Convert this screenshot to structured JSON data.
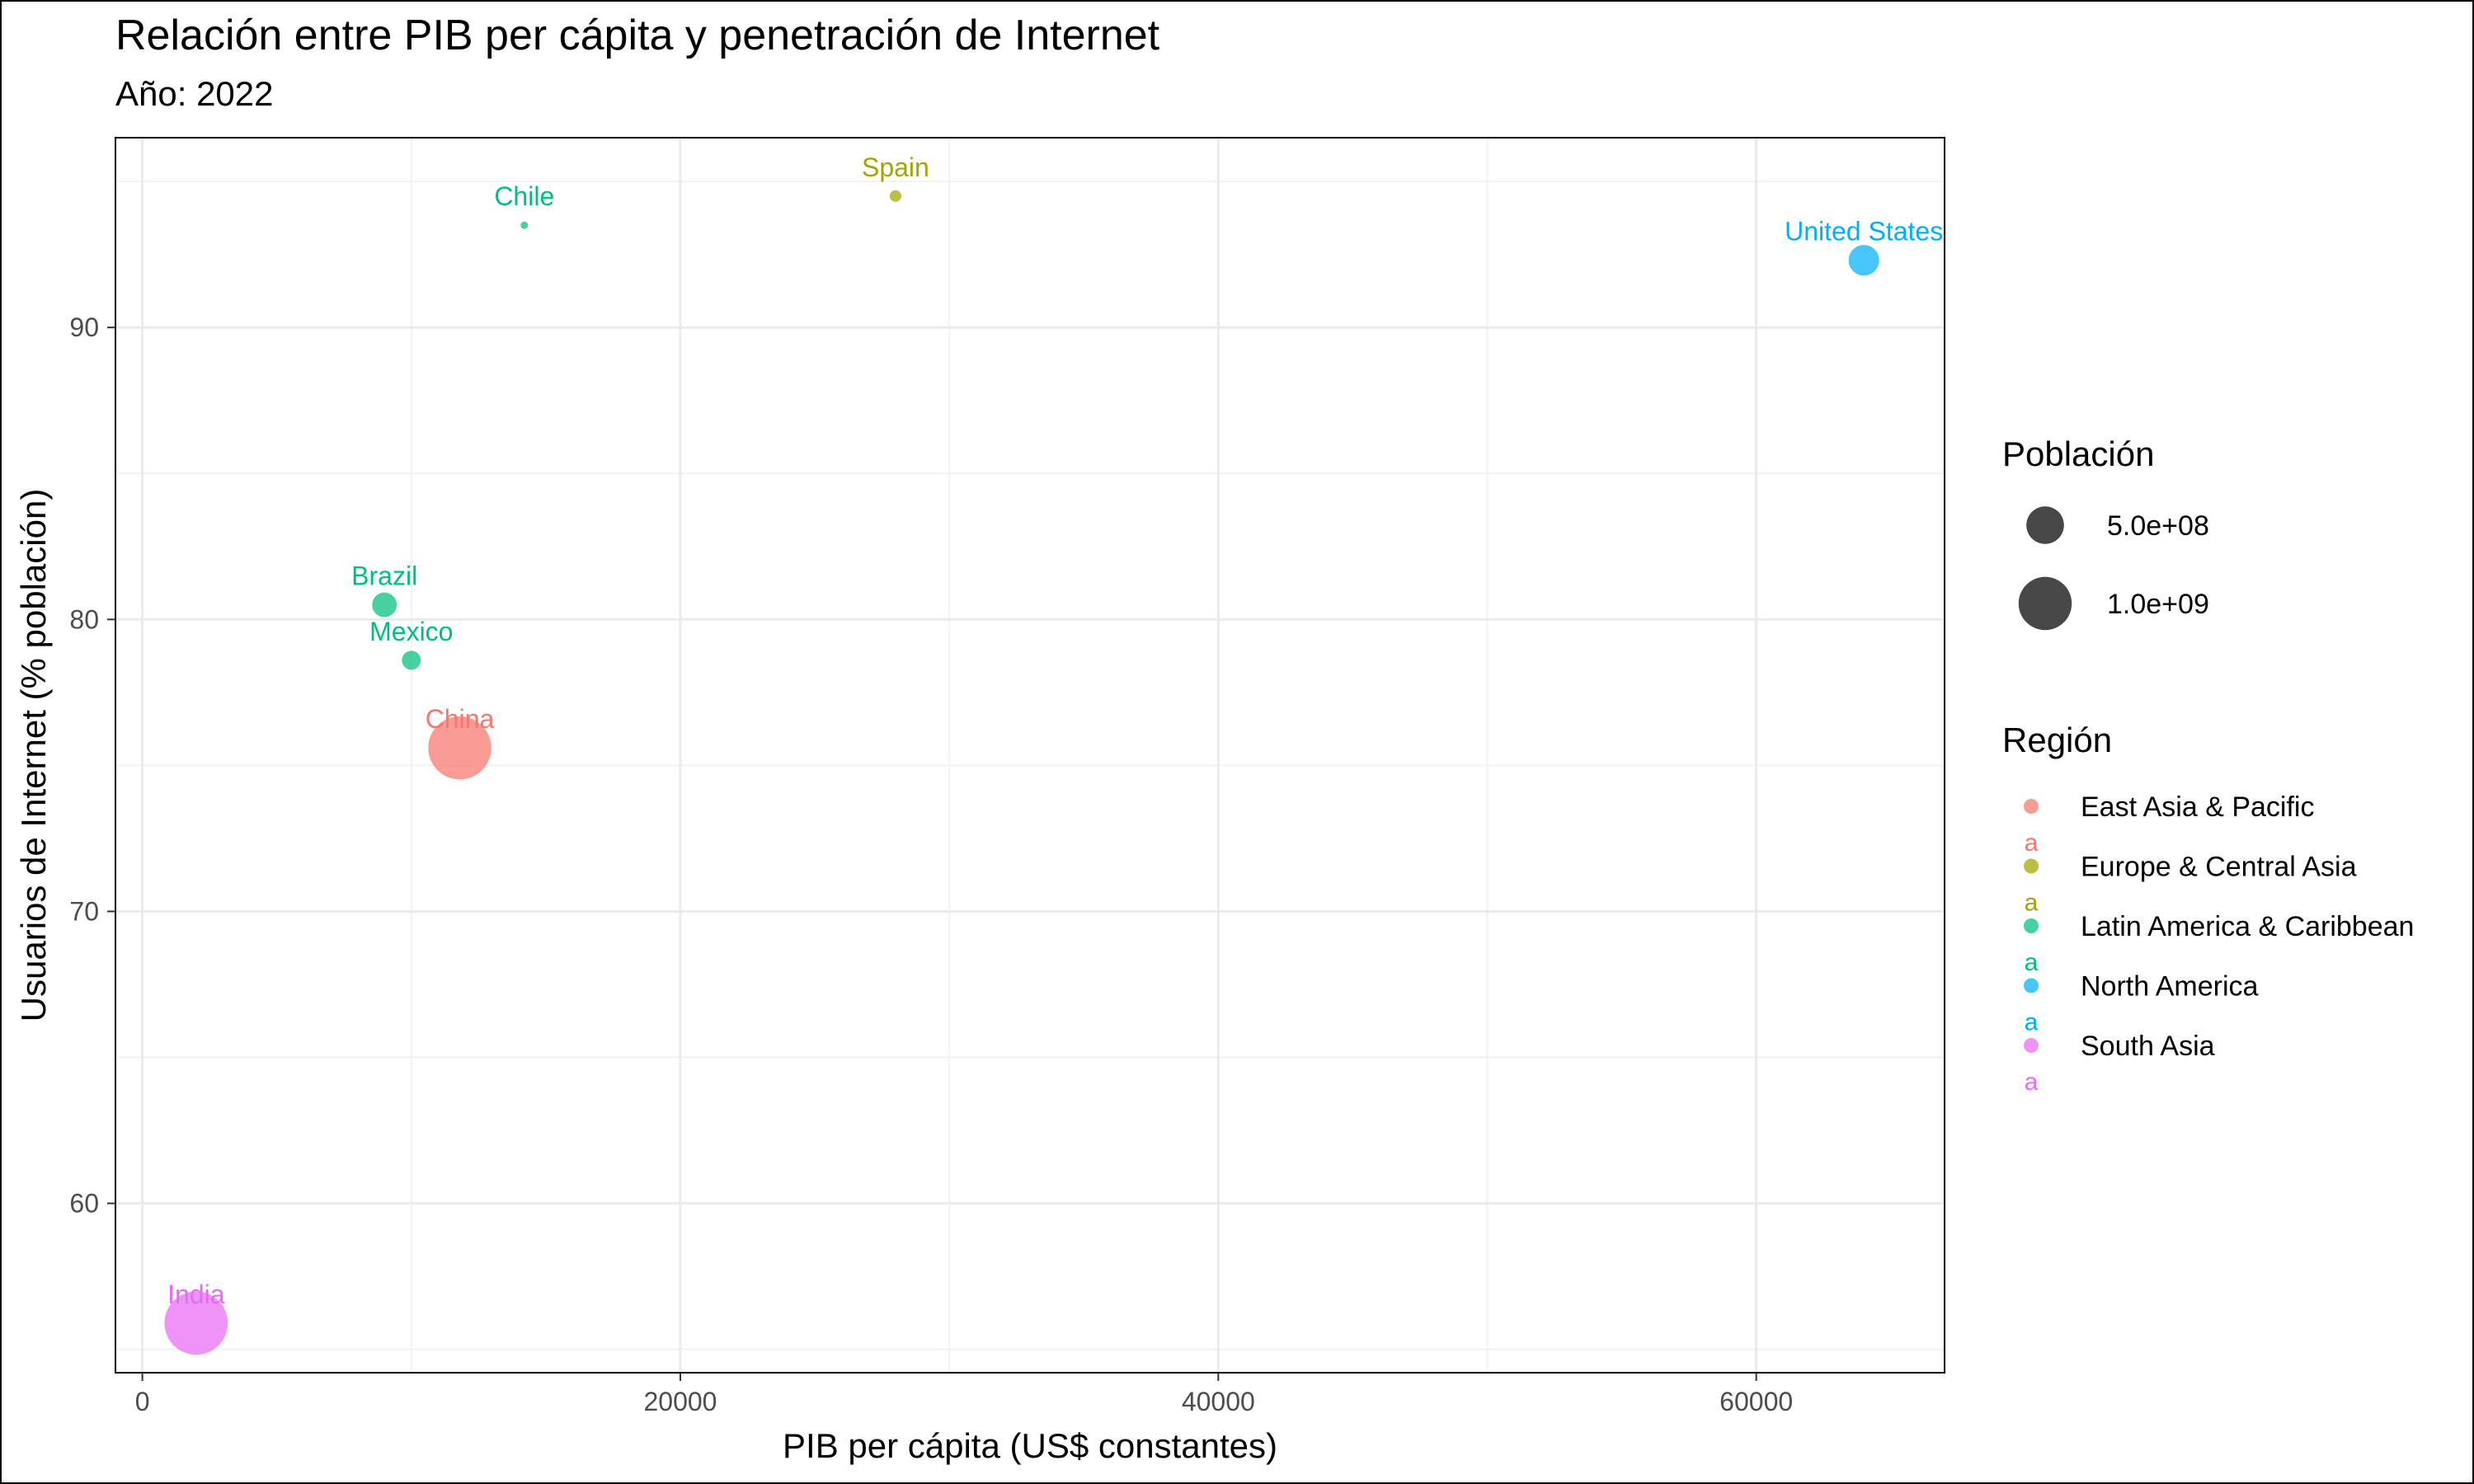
{
  "chart_data": {
    "type": "scatter",
    "title": "Relación entre PIB per cápita y penetración de Internet",
    "subtitle": "Año: 2022",
    "xlabel": "PIB per cápita (US$ constantes)",
    "ylabel": "Usuarios de Internet (% población)",
    "xlim": [
      -1000,
      67000
    ],
    "ylim": [
      54.2,
      96.5
    ],
    "x_ticks": [
      0,
      20000,
      40000,
      60000
    ],
    "x_tick_labels": [
      "0",
      "20000",
      "40000",
      "60000"
    ],
    "y_ticks": [
      60,
      70,
      80,
      90
    ],
    "y_tick_labels": [
      "60",
      "70",
      "80",
      "90"
    ],
    "grid": true,
    "size_range": [
      6,
      20
    ],
    "size_max_pop": 1420000000,
    "points": [
      {
        "label": "Chile",
        "region": "Latin America & Caribbean",
        "x": 14200,
        "y": 93.5,
        "population": 19600000
      },
      {
        "label": "Spain",
        "region": "Europe & Central Asia",
        "x": 28000,
        "y": 94.5,
        "population": 47800000
      },
      {
        "label": "United States",
        "region": "North America",
        "x": 64000,
        "y": 92.3,
        "population": 333000000
      },
      {
        "label": "Brazil",
        "region": "Latin America & Caribbean",
        "x": 9000,
        "y": 80.5,
        "population": 215000000
      },
      {
        "label": "Mexico",
        "region": "Latin America & Caribbean",
        "x": 10000,
        "y": 78.6,
        "population": 127000000
      },
      {
        "label": "China",
        "region": "East Asia & Pacific",
        "x": 11800,
        "y": 75.6,
        "population": 1410000000
      },
      {
        "label": "India",
        "region": "South Asia",
        "x": 2000,
        "y": 55.9,
        "population": 1420000000
      }
    ],
    "legend_size": {
      "title": "Población",
      "entries": [
        {
          "label": "5.0e+08",
          "value": 500000000
        },
        {
          "label": "1.0e+09",
          "value": 1000000000
        }
      ]
    },
    "legend_color": {
      "title": "Región",
      "entries": [
        {
          "label": "East Asia & Pacific",
          "color": "#F8766D"
        },
        {
          "label": "Europe & Central Asia",
          "color": "#A3A500"
        },
        {
          "label": "Latin America & Caribbean",
          "color": "#00BF7D"
        },
        {
          "label": "North America",
          "color": "#00B0F6"
        },
        {
          "label": "South Asia",
          "color": "#E76BF3"
        }
      ],
      "key_glyph": "a"
    },
    "legend_placement": "right"
  }
}
